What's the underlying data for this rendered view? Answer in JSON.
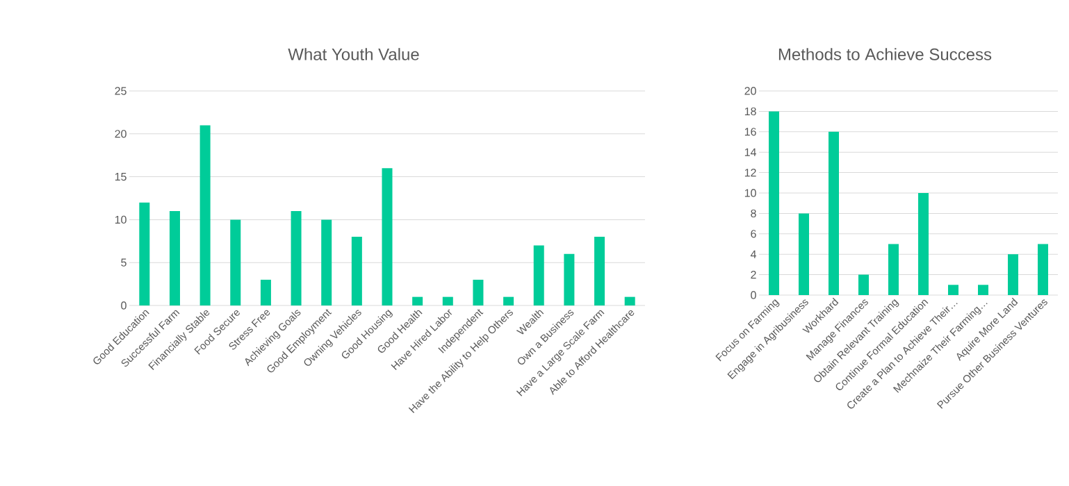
{
  "chart_data": [
    {
      "type": "bar",
      "title": "What Youth Value",
      "categories": [
        "Good Education",
        "Successful Farm",
        "Financially Stable",
        "Food Secure",
        "Stress Free",
        "Achieving Goals",
        "Good Employment",
        "Owning Vehicles",
        "Good Housing",
        "Good Health",
        "Have Hired Labor",
        "Independent",
        "Have the Ability to Help Others",
        "Wealth",
        "Own a Business",
        "Have a Large Scale Farm",
        "Able to Afford Healthcare"
      ],
      "values": [
        12,
        11,
        21,
        10,
        3,
        11,
        10,
        8,
        16,
        1,
        1,
        3,
        1,
        7,
        6,
        8,
        1
      ],
      "color": "#00cc99",
      "ylim": [
        0,
        25
      ],
      "yticks": [
        0,
        5,
        10,
        15,
        20,
        25
      ],
      "grid": "y"
    },
    {
      "type": "bar",
      "title": "Methods to Achieve Success",
      "categories": [
        "Focus on Farming",
        "Engage in Agribusiness",
        "Workhard",
        "Manage Finances",
        "Obtain Relevant Training",
        "Continue Formal Education",
        "Create a Plan to Achieve Their…",
        "Mechnaize Their Farming…",
        "Aquire More Land",
        "Pursue Other Business Ventures"
      ],
      "values": [
        18,
        8,
        16,
        2,
        5,
        10,
        1,
        1,
        4,
        5
      ],
      "color": "#00cc99",
      "ylim": [
        0,
        20
      ],
      "yticks": [
        0,
        2,
        4,
        6,
        8,
        10,
        12,
        14,
        16,
        18,
        20
      ],
      "grid": "y"
    }
  ]
}
